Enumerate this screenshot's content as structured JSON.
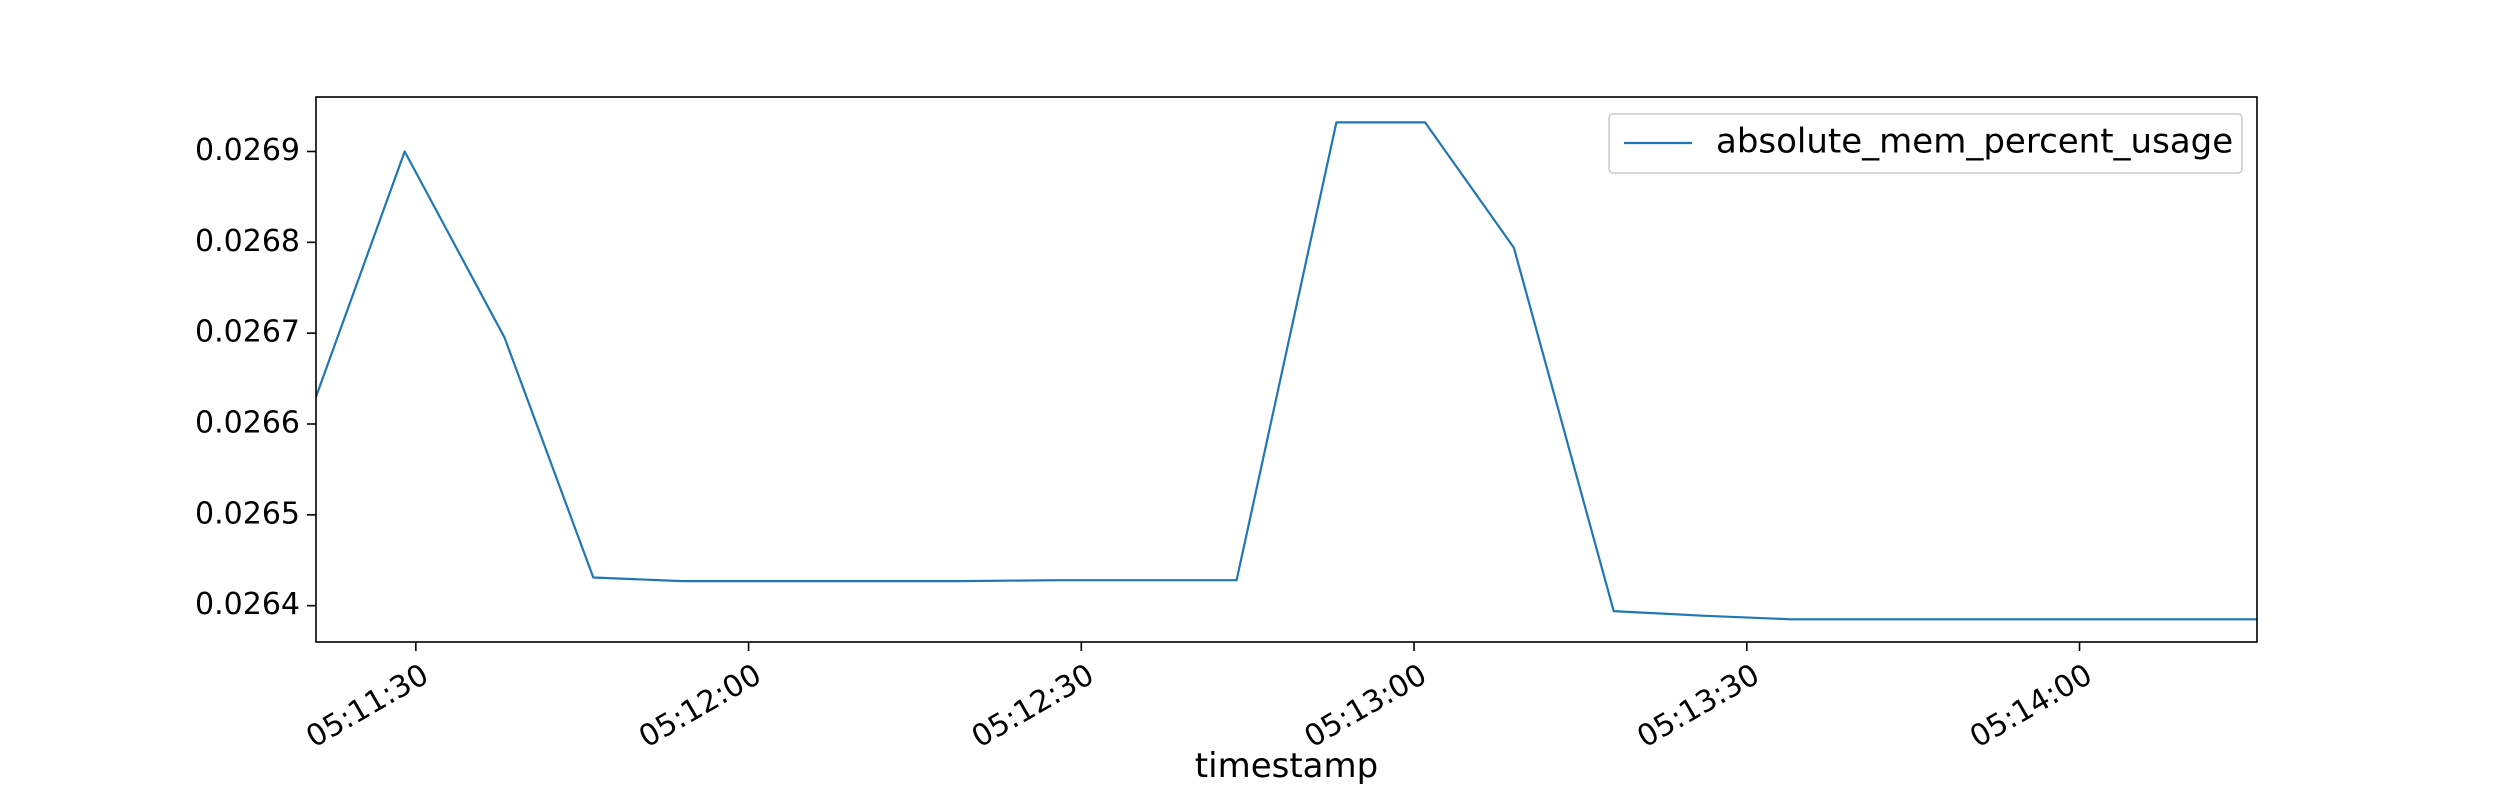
{
  "chart_data": {
    "type": "line",
    "xlabel": "timestamp",
    "ylabel": "",
    "title": "",
    "x_ticks": [
      "05:11:30",
      "05:12:00",
      "05:12:30",
      "05:13:00",
      "05:13:30",
      "05:14:00"
    ],
    "y_ticks": [
      "0.0264",
      "0.0265",
      "0.0266",
      "0.0267",
      "0.0268",
      "0.0269"
    ],
    "xlim": [
      "05:11:21",
      "05:14:16"
    ],
    "ylim": [
      0.02636,
      0.02696
    ],
    "grid": false,
    "legend_position": "top-right",
    "series": [
      {
        "name": "absolute_mem_percent_usage",
        "color": "#1f77b4",
        "points": [
          {
            "x": "05:11:21",
            "y": 0.02663
          },
          {
            "x": "05:11:29",
            "y": 0.0269
          },
          {
            "x": "05:11:38",
            "y": 0.026695
          },
          {
            "x": "05:11:46",
            "y": 0.026431
          },
          {
            "x": "05:11:54",
            "y": 0.026427
          },
          {
            "x": "05:12:03",
            "y": 0.026427
          },
          {
            "x": "05:12:11",
            "y": 0.026427
          },
          {
            "x": "05:12:19",
            "y": 0.026427
          },
          {
            "x": "05:12:28",
            "y": 0.026428
          },
          {
            "x": "05:12:36",
            "y": 0.026428
          },
          {
            "x": "05:12:44",
            "y": 0.026428
          },
          {
            "x": "05:12:53",
            "y": 0.026932
          },
          {
            "x": "05:13:01",
            "y": 0.026932
          },
          {
            "x": "05:13:09",
            "y": 0.026794
          },
          {
            "x": "05:13:18",
            "y": 0.026394
          },
          {
            "x": "05:13:26",
            "y": 0.026389
          },
          {
            "x": "05:13:34",
            "y": 0.026385
          },
          {
            "x": "05:13:43",
            "y": 0.026385
          },
          {
            "x": "05:13:51",
            "y": 0.026385
          },
          {
            "x": "05:13:59",
            "y": 0.026385
          },
          {
            "x": "05:14:08",
            "y": 0.026385
          },
          {
            "x": "05:14:16",
            "y": 0.026385
          }
        ]
      }
    ]
  }
}
